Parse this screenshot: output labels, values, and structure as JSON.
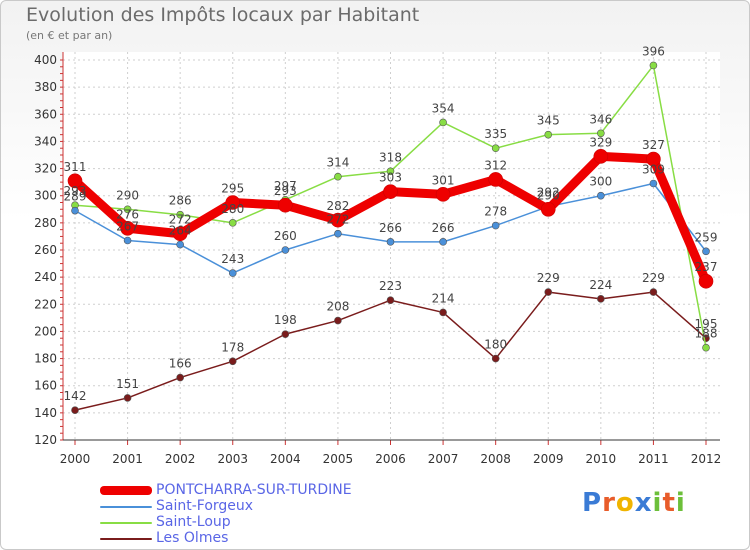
{
  "title": "Evolution des Impôts locaux par Habitant",
  "subtitle": "(en € et par an)",
  "logo": {
    "letters": [
      "P",
      "r",
      "o",
      "x",
      "i",
      "t",
      "i"
    ],
    "colors": [
      "#3a7bd5",
      "#e85c2a",
      "#f0b400",
      "#3a7bd5",
      "#6cbf3a",
      "#e85c2a",
      "#6cbf3a"
    ]
  },
  "chart_data": {
    "type": "line",
    "x": [
      "2000",
      "2001",
      "2002",
      "2003",
      "2004",
      "2005",
      "2006",
      "2007",
      "2008",
      "2009",
      "2010",
      "2011",
      "2012"
    ],
    "ylim": [
      120,
      400
    ],
    "yticks": [
      120,
      140,
      160,
      180,
      200,
      220,
      240,
      260,
      280,
      300,
      320,
      340,
      360,
      380,
      400
    ],
    "grid": true,
    "series": [
      {
        "name": "PONTCHARRA-SUR-TURDINE",
        "color": "#ee0000",
        "values": [
          311,
          276,
          272,
          295,
          293,
          282,
          303,
          301,
          312,
          290,
          329,
          327,
          237
        ]
      },
      {
        "name": "Saint-Forgeux",
        "color": "#4a90d9",
        "values": [
          289,
          267,
          264,
          243,
          260,
          272,
          266,
          266,
          278,
          292,
          300,
          309,
          259
        ]
      },
      {
        "name": "Saint-Loup",
        "color": "#88dd44",
        "values": [
          293,
          290,
          286,
          280,
          297,
          314,
          318,
          354,
          335,
          345,
          346,
          396,
          188
        ]
      },
      {
        "name": "Les Olmes",
        "color": "#7a1c1c",
        "values": [
          142,
          151,
          166,
          178,
          198,
          208,
          223,
          214,
          180,
          229,
          224,
          229,
          195
        ]
      }
    ]
  }
}
